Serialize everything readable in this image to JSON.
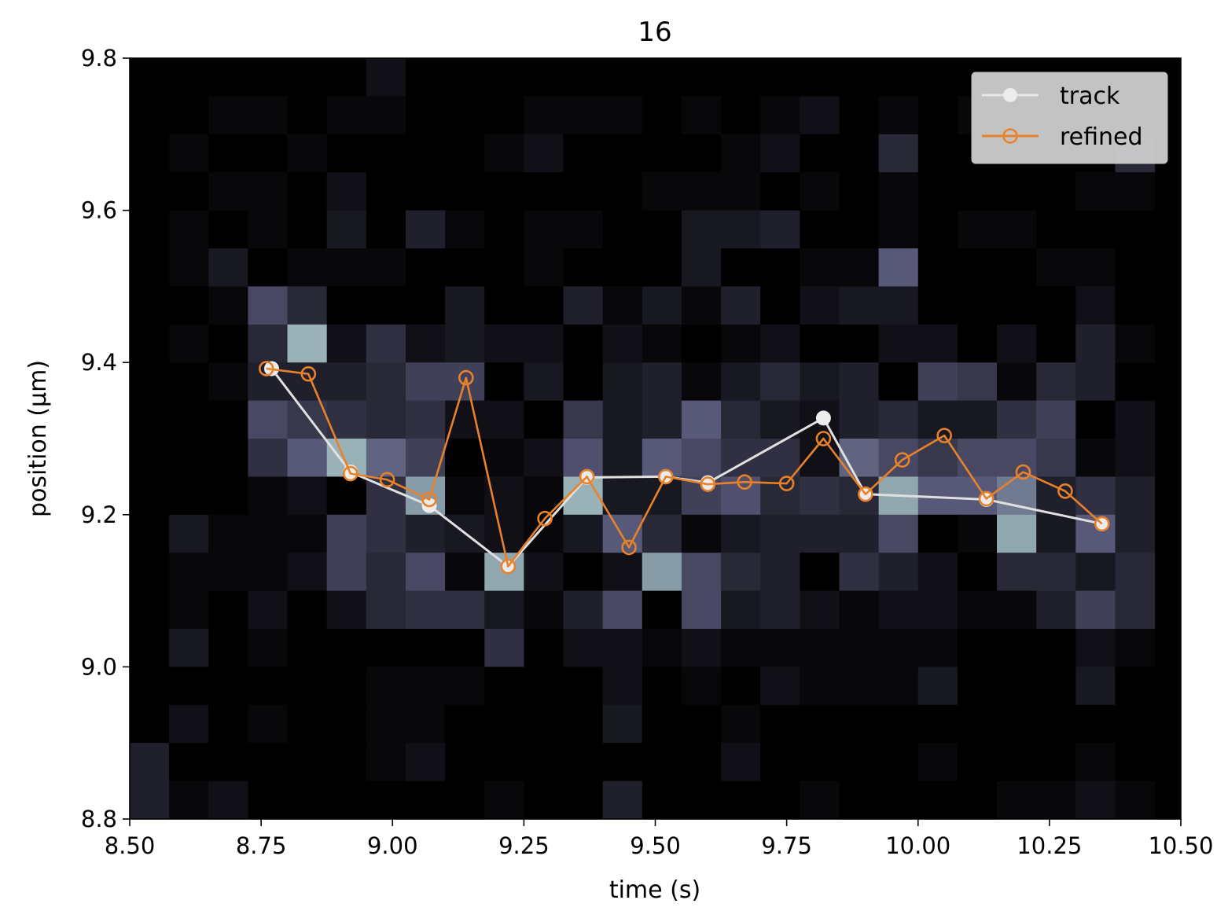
{
  "chart_data": {
    "type": "line",
    "title": "16",
    "xlabel": "time (s)",
    "ylabel": "position (μm)",
    "xlim": [
      8.5,
      10.5
    ],
    "ylim": [
      8.8,
      9.8
    ],
    "xticks": [
      "8.50",
      "8.75",
      "9.00",
      "9.25",
      "9.50",
      "9.75",
      "10.00",
      "10.25",
      "10.50"
    ],
    "yticks": [
      "8.8",
      "9.0",
      "9.2",
      "9.4",
      "9.6",
      "9.8"
    ],
    "grid": false,
    "legend_position": "top-right",
    "background": {
      "type": "heatmap",
      "colormap": "bone",
      "x_bins": 26,
      "y_bins": 20,
      "x_start": 8.5,
      "x_step": 0.075,
      "y_start": 9.8,
      "y_step": -0.05,
      "x_extent": 10.45,
      "note_order": "rows top to bottom, columns left to right",
      "values": [
        [
          0,
          0,
          0,
          0,
          0,
          0,
          2,
          0,
          0,
          0,
          0,
          0,
          0,
          0,
          0,
          0,
          0,
          0,
          0,
          0,
          0,
          0,
          0,
          0,
          0,
          0
        ],
        [
          0,
          0,
          1,
          1,
          0,
          1,
          1,
          0,
          0,
          0,
          1,
          1,
          1,
          0,
          1,
          0,
          1,
          2,
          0,
          1,
          0,
          1,
          0,
          0,
          1,
          0
        ],
        [
          0,
          1,
          0,
          0,
          1,
          0,
          0,
          0,
          0,
          1,
          2,
          0,
          0,
          0,
          0,
          1,
          2,
          0,
          0,
          5,
          0,
          0,
          0,
          0,
          0,
          5
        ],
        [
          0,
          0,
          1,
          1,
          0,
          2,
          0,
          0,
          0,
          0,
          0,
          0,
          0,
          1,
          1,
          1,
          0,
          1,
          0,
          1,
          0,
          0,
          0,
          0,
          1,
          1
        ],
        [
          0,
          1,
          0,
          1,
          0,
          3,
          0,
          4,
          1,
          0,
          1,
          1,
          0,
          0,
          3,
          3,
          4,
          0,
          0,
          1,
          0,
          1,
          1,
          0,
          0,
          0
        ],
        [
          0,
          1,
          3,
          0,
          1,
          1,
          1,
          0,
          0,
          0,
          1,
          0,
          0,
          0,
          3,
          0,
          0,
          1,
          1,
          11,
          0,
          0,
          0,
          1,
          1,
          0
        ],
        [
          0,
          0,
          1,
          9,
          5,
          0,
          0,
          0,
          3,
          0,
          0,
          4,
          1,
          3,
          1,
          4,
          0,
          2,
          3,
          3,
          0,
          0,
          0,
          0,
          2,
          0
        ],
        [
          0,
          1,
          0,
          5,
          19,
          2,
          6,
          2,
          3,
          2,
          2,
          0,
          2,
          1,
          0,
          1,
          2,
          0,
          0,
          2,
          2,
          0,
          2,
          0,
          4,
          1
        ],
        [
          0,
          0,
          1,
          4,
          4,
          4,
          5,
          8,
          8,
          0,
          3,
          0,
          3,
          4,
          1,
          3,
          5,
          3,
          4,
          0,
          8,
          7,
          1,
          5,
          4,
          0
        ],
        [
          0,
          0,
          0,
          9,
          7,
          6,
          5,
          6,
          2,
          2,
          0,
          7,
          3,
          4,
          11,
          5,
          3,
          2,
          4,
          5,
          3,
          3,
          6,
          8,
          0,
          2
        ],
        [
          0,
          0,
          0,
          6,
          11,
          19,
          12,
          8,
          0,
          1,
          2,
          10,
          3,
          11,
          9,
          6,
          6,
          2,
          12,
          9,
          7,
          9,
          9,
          7,
          1,
          2
        ],
        [
          0,
          0,
          0,
          1,
          2,
          0,
          6,
          17,
          1,
          2,
          1,
          19,
          3,
          3,
          8,
          10,
          5,
          6,
          5,
          18,
          11,
          11,
          14,
          4,
          6,
          4
        ],
        [
          0,
          3,
          1,
          1,
          1,
          8,
          6,
          4,
          3,
          2,
          1,
          3,
          11,
          5,
          1,
          3,
          4,
          4,
          4,
          9,
          0,
          1,
          18,
          3,
          11,
          4
        ],
        [
          0,
          1,
          1,
          1,
          2,
          8,
          5,
          9,
          1,
          18,
          2,
          0,
          2,
          17,
          9,
          5,
          4,
          0,
          6,
          4,
          2,
          0,
          5,
          5,
          3,
          5
        ],
        [
          0,
          1,
          0,
          2,
          0,
          2,
          5,
          6,
          6,
          3,
          1,
          4,
          9,
          0,
          9,
          3,
          4,
          2,
          1,
          2,
          2,
          1,
          1,
          4,
          8,
          5
        ],
        [
          0,
          3,
          0,
          1,
          0,
          0,
          0,
          0,
          0,
          6,
          0,
          2,
          2,
          1,
          2,
          1,
          1,
          1,
          1,
          1,
          1,
          0,
          0,
          0,
          2,
          1
        ],
        [
          0,
          0,
          0,
          0,
          0,
          0,
          1,
          1,
          1,
          0,
          0,
          0,
          2,
          0,
          1,
          0,
          2,
          1,
          1,
          1,
          3,
          0,
          0,
          0,
          3,
          0
        ],
        [
          0,
          2,
          0,
          1,
          0,
          0,
          1,
          1,
          0,
          0,
          0,
          0,
          3,
          0,
          0,
          1,
          0,
          0,
          0,
          0,
          0,
          0,
          0,
          0,
          0,
          0
        ],
        [
          4,
          0,
          0,
          0,
          0,
          0,
          1,
          2,
          0,
          0,
          0,
          0,
          0,
          0,
          0,
          2,
          0,
          0,
          0,
          0,
          1,
          0,
          0,
          0,
          1,
          0
        ],
        [
          4,
          1,
          2,
          0,
          0,
          0,
          0,
          0,
          0,
          1,
          0,
          0,
          4,
          0,
          0,
          0,
          0,
          1,
          0,
          0,
          0,
          0,
          1,
          1,
          2,
          1
        ]
      ]
    },
    "series": [
      {
        "name": "track",
        "color": "#e0e0e0",
        "marker": "filled-circle",
        "x": [
          8.77,
          8.92,
          9.07,
          9.22,
          9.37,
          9.52,
          9.6,
          9.82,
          9.9,
          10.13,
          10.35
        ],
        "y": [
          9.392,
          9.256,
          9.212,
          9.132,
          9.249,
          9.25,
          9.242,
          9.327,
          9.227,
          9.22,
          9.188
        ]
      },
      {
        "name": "refined",
        "color": "#e8812a",
        "marker": "hollow-circle",
        "x": [
          8.76,
          8.84,
          8.92,
          8.99,
          9.07,
          9.14,
          9.22,
          9.29,
          9.37,
          9.45,
          9.52,
          9.6,
          9.67,
          9.75,
          9.82,
          9.9,
          9.97,
          10.05,
          10.13,
          10.2,
          10.28,
          10.35
        ],
        "y": [
          9.392,
          9.385,
          9.254,
          9.246,
          9.22,
          9.38,
          9.132,
          9.195,
          9.25,
          9.157,
          9.25,
          9.24,
          9.243,
          9.241,
          9.3,
          9.227,
          9.272,
          9.304,
          9.221,
          9.256,
          9.231,
          9.188
        ]
      }
    ]
  }
}
